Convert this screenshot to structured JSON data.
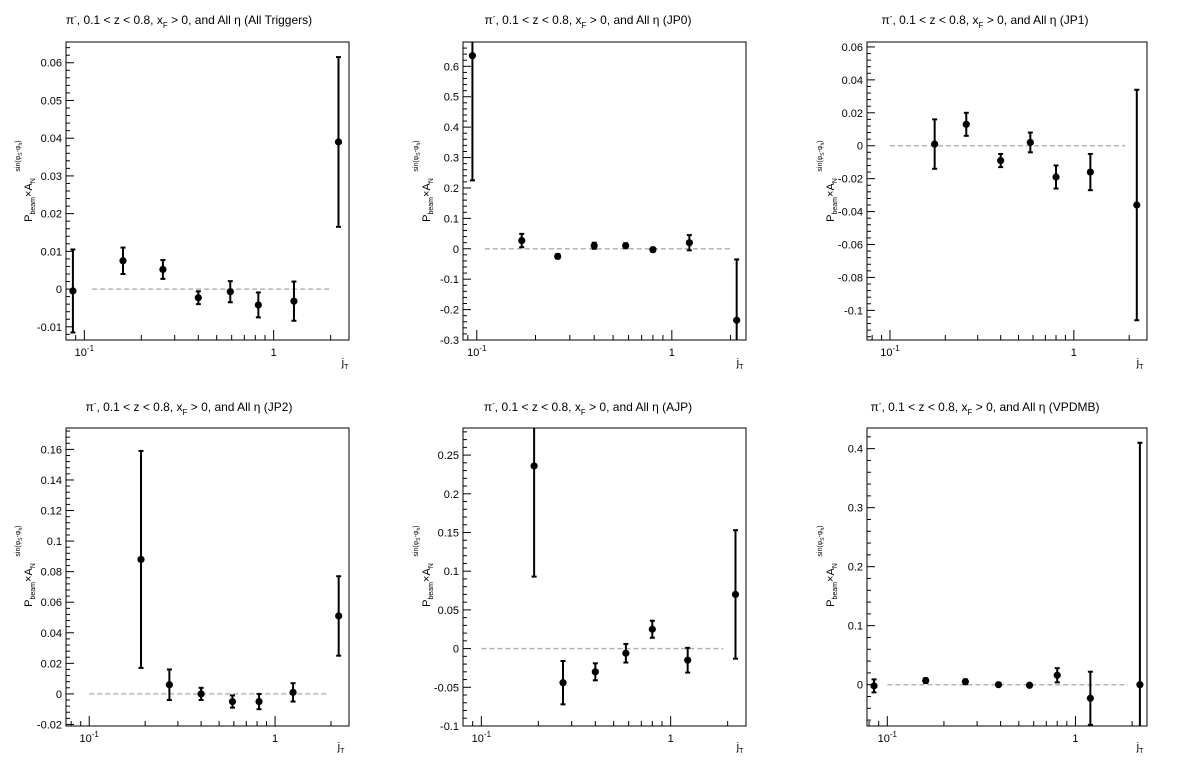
{
  "chart_data": [
    {
      "type": "scatter",
      "title": "π⁻, 0.1 < z < 0.8, x_F > 0, and All η (All Triggers)",
      "xlabel": "j_T",
      "ylabel": "P_beam × A_N^{sin(φ_S−φ_h)}",
      "xscale": "log",
      "xlim": [
        0.08,
        2.5
      ],
      "ylim": [
        -0.0135,
        0.0655
      ],
      "yticks": [
        -0.01,
        0,
        0.01,
        0.02,
        0.03,
        0.04,
        0.05,
        0.06
      ],
      "ytick_labels": [
        "-0.01",
        "0",
        "0.01",
        "0.02",
        "0.03",
        "0.04",
        "0.05",
        "0.06"
      ],
      "xtick_labels": [
        "10^-1",
        "1"
      ],
      "reference_line": {
        "y": 0,
        "x_range": [
          0.11,
          2.0
        ]
      },
      "x": [
        0.087,
        0.16,
        0.26,
        0.4,
        0.59,
        0.83,
        1.28,
        2.2
      ],
      "y": [
        -0.0005,
        0.0075,
        0.0052,
        -0.0023,
        -0.0007,
        -0.0042,
        -0.0032,
        0.039
      ],
      "yerr": [
        0.011,
        0.0035,
        0.0025,
        0.0017,
        0.0028,
        0.0033,
        0.0052,
        0.0225
      ]
    },
    {
      "type": "scatter",
      "title": "π⁻, 0.1 < z < 0.8, x_F > 0, and All η (JP0)",
      "xlabel": "j_T",
      "ylabel": "P_beam × A_N^{sin(φ_S−φ_h)}",
      "xscale": "log",
      "xlim": [
        0.085,
        2.4
      ],
      "ylim": [
        -0.3,
        0.68
      ],
      "yticks": [
        -0.3,
        -0.2,
        -0.1,
        0,
        0.1,
        0.2,
        0.3,
        0.4,
        0.5,
        0.6
      ],
      "ytick_labels": [
        "-0.3",
        "-0.2",
        "-0.1",
        "0",
        "0.1",
        "0.2",
        "0.3",
        "0.4",
        "0.5",
        "0.6"
      ],
      "xtick_labels": [
        "10^-1",
        "1"
      ],
      "reference_line": {
        "y": 0,
        "x_range": [
          0.11,
          2.0
        ]
      },
      "x": [
        0.095,
        0.17,
        0.26,
        0.4,
        0.58,
        0.8,
        1.23,
        2.15
      ],
      "y": [
        0.635,
        0.027,
        -0.025,
        0.01,
        0.01,
        -0.003,
        0.02,
        -0.235
      ],
      "yerr": [
        0.41,
        0.022,
        0.007,
        0.01,
        0.008,
        0.007,
        0.025,
        0.2
      ]
    },
    {
      "type": "scatter",
      "title": "π⁻, 0.1 < z < 0.8, x_F > 0, and All η (JP1)",
      "xlabel": "j_T",
      "ylabel": "P_beam × A_N^{sin(φ_S−φ_h)}",
      "xscale": "log",
      "xlim": [
        0.075,
        2.5
      ],
      "ylim": [
        -0.118,
        0.063
      ],
      "yticks": [
        -0.1,
        -0.08,
        -0.06,
        -0.04,
        -0.02,
        0,
        0.02,
        0.04,
        0.06
      ],
      "ytick_labels": [
        "-0.1",
        "-0.08",
        "-0.06",
        "-0.04",
        "-0.02",
        "0",
        "0.02",
        "0.04",
        "0.06"
      ],
      "xtick_labels": [
        "10^-1",
        "1"
      ],
      "reference_line": {
        "y": 0,
        "x_range": [
          0.1,
          1.9
        ]
      },
      "x": [
        0.175,
        0.26,
        0.4,
        0.58,
        0.8,
        1.23,
        2.2
      ],
      "y": [
        0.001,
        0.013,
        -0.009,
        0.002,
        -0.019,
        -0.016,
        -0.036
      ],
      "yerr": [
        0.015,
        0.007,
        0.004,
        0.006,
        0.007,
        0.011,
        0.07
      ]
    },
    {
      "type": "scatter",
      "title": "π⁻, 0.1 < z < 0.8, x_F > 0, and All η (JP2)",
      "xlabel": "j_T",
      "ylabel": "P_beam × A_N^{sin(φ_S−φ_h)}",
      "xscale": "log",
      "xlim": [
        0.075,
        2.5
      ],
      "ylim": [
        -0.021,
        0.174
      ],
      "yticks": [
        -0.02,
        0,
        0.02,
        0.04,
        0.06,
        0.08,
        0.1,
        0.12,
        0.14,
        0.16
      ],
      "ytick_labels": [
        "-0.02",
        "0",
        "0.02",
        "0.04",
        "0.06",
        "0.08",
        "0.1",
        "0.12",
        "0.14",
        "0.16"
      ],
      "xtick_labels": [
        "10^-1",
        "1"
      ],
      "reference_line": {
        "y": 0,
        "x_range": [
          0.1,
          1.9
        ]
      },
      "x": [
        0.19,
        0.27,
        0.4,
        0.59,
        0.82,
        1.25,
        2.2
      ],
      "y": [
        0.088,
        0.006,
        0.0,
        -0.005,
        -0.005,
        0.001,
        0.051
      ],
      "yerr": [
        0.071,
        0.01,
        0.004,
        0.004,
        0.005,
        0.006,
        0.026
      ]
    },
    {
      "type": "scatter",
      "title": "π⁻, 0.1 < z < 0.8, x_F > 0, and All η (AJP)",
      "xlabel": "j_T",
      "ylabel": "P_beam × A_N^{sin(φ_S−φ_h)}",
      "xscale": "log",
      "xlim": [
        0.08,
        2.5
      ],
      "ylim": [
        -0.1,
        0.285
      ],
      "yticks": [
        -0.1,
        -0.05,
        0,
        0.05,
        0.1,
        0.15,
        0.2,
        0.25
      ],
      "ytick_labels": [
        "-0.1",
        "-0.05",
        "0",
        "0.05",
        "0.1",
        "0.15",
        "0.2",
        "0.25"
      ],
      "xtick_labels": [
        "10^-1",
        "1"
      ],
      "reference_line": {
        "y": 0,
        "x_range": [
          0.1,
          1.9
        ]
      },
      "x": [
        0.19,
        0.27,
        0.4,
        0.58,
        0.8,
        1.23,
        2.2
      ],
      "y": [
        0.236,
        -0.044,
        -0.03,
        -0.006,
        0.025,
        -0.015,
        0.07
      ],
      "yerr": [
        0.143,
        0.028,
        0.011,
        0.012,
        0.011,
        0.016,
        0.083
      ]
    },
    {
      "type": "scatter",
      "title": "π⁻, 0.1 < z < 0.8, x_F > 0, and All η (VPDMB)",
      "xlabel": "j_T",
      "ylabel": "P_beam × A_N^{sin(φ_S−φ_h)}",
      "xscale": "log",
      "xlim": [
        0.078,
        2.4
      ],
      "ylim": [
        -0.07,
        0.435
      ],
      "yticks": [
        0,
        0.1,
        0.2,
        0.3,
        0.4
      ],
      "ytick_labels": [
        "0",
        "0.1",
        "0.2",
        "0.3",
        "0.4"
      ],
      "xtick_labels": [
        "10^-1",
        "1"
      ],
      "reference_line": {
        "y": 0,
        "x_range": [
          0.1,
          1.9
        ]
      },
      "x": [
        0.085,
        0.16,
        0.26,
        0.39,
        0.57,
        0.8,
        1.2,
        2.2
      ],
      "y": [
        -0.002,
        0.007,
        0.005,
        0.0,
        -0.001,
        0.016,
        -0.023,
        0.0
      ],
      "yerr": [
        0.011,
        0.004,
        0.004,
        0.003,
        0.003,
        0.012,
        0.045,
        0.41
      ]
    }
  ]
}
